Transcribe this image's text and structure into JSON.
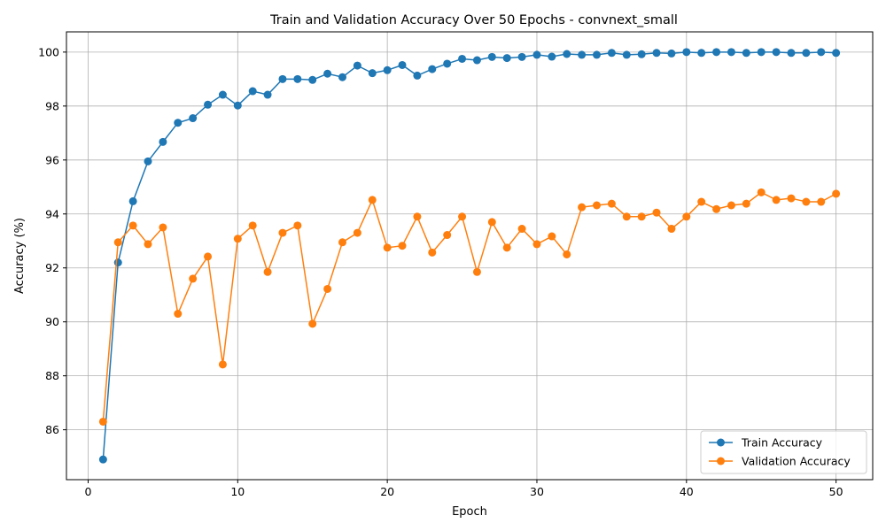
{
  "chart_data": {
    "type": "line",
    "title": "Train and Validation Accuracy Over 50 Epochs - convnext_small",
    "xlabel": "Epoch",
    "ylabel": "Accuracy (%)",
    "xlim": [
      -1.45,
      52.45
    ],
    "ylim": [
      84.15,
      100.75
    ],
    "xticks": [
      0,
      10,
      20,
      30,
      40,
      50
    ],
    "xtick_labels": [
      "0",
      "10",
      "20",
      "30",
      "40",
      "50"
    ],
    "yticks": [
      86,
      88,
      90,
      92,
      94,
      96,
      98,
      100
    ],
    "ytick_labels": [
      "86",
      "88",
      "90",
      "92",
      "94",
      "96",
      "98",
      "100"
    ],
    "grid": true,
    "legend_position": "bottom-right",
    "x": [
      1,
      2,
      3,
      4,
      5,
      6,
      7,
      8,
      9,
      10,
      11,
      12,
      13,
      14,
      15,
      16,
      17,
      18,
      19,
      20,
      21,
      22,
      23,
      24,
      25,
      26,
      27,
      28,
      29,
      30,
      31,
      32,
      33,
      34,
      35,
      36,
      37,
      38,
      39,
      40,
      41,
      42,
      43,
      44,
      45,
      46,
      47,
      48,
      49,
      50
    ],
    "series": [
      {
        "name": "Train Accuracy",
        "color": "#1f77b4",
        "values": [
          84.9,
          92.2,
          94.47,
          95.95,
          96.67,
          97.38,
          97.55,
          98.05,
          98.42,
          98.02,
          98.55,
          98.42,
          99.0,
          99.0,
          98.97,
          99.2,
          99.07,
          99.5,
          99.22,
          99.33,
          99.52,
          99.13,
          99.37,
          99.57,
          99.75,
          99.7,
          99.82,
          99.78,
          99.82,
          99.9,
          99.83,
          99.93,
          99.9,
          99.9,
          99.97,
          99.9,
          99.92,
          99.97,
          99.95,
          100.0,
          99.97,
          100.0,
          100.0,
          99.97,
          100.0,
          100.0,
          99.97,
          99.97,
          100.0,
          99.97
        ]
      },
      {
        "name": "Validation Accuracy",
        "color": "#ff7f0e",
        "values": [
          86.3,
          92.95,
          93.57,
          92.88,
          93.5,
          90.3,
          91.6,
          92.42,
          88.42,
          93.08,
          93.57,
          91.85,
          93.3,
          93.57,
          89.93,
          91.22,
          92.95,
          93.3,
          94.52,
          92.75,
          92.82,
          93.9,
          92.57,
          93.22,
          93.9,
          91.85,
          93.7,
          92.75,
          93.45,
          92.88,
          93.17,
          92.5,
          94.25,
          94.32,
          94.38,
          93.9,
          93.9,
          94.05,
          93.45,
          93.9,
          94.45,
          94.18,
          94.32,
          94.38,
          94.8,
          94.52,
          94.58,
          94.45,
          94.45,
          94.75
        ]
      }
    ]
  }
}
